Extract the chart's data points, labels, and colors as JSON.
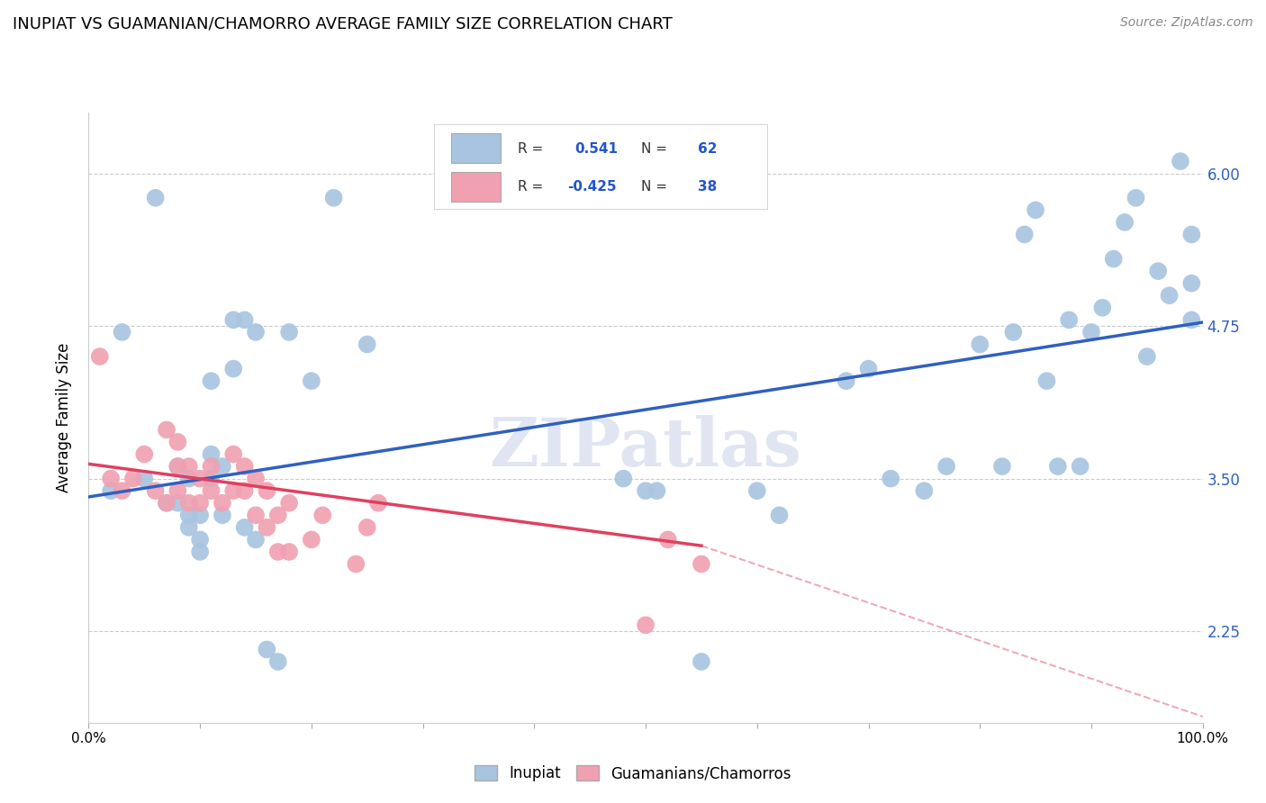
{
  "title": "INUPIAT VS GUAMANIAN/CHAMORRO AVERAGE FAMILY SIZE CORRELATION CHART",
  "source": "Source: ZipAtlas.com",
  "ylabel": "Average Family Size",
  "yticks": [
    2.25,
    3.5,
    4.75,
    6.0
  ],
  "xlim": [
    0,
    100
  ],
  "ylim": [
    1.5,
    6.5
  ],
  "blue_R": 0.541,
  "blue_N": 62,
  "pink_R": -0.425,
  "pink_N": 38,
  "blue_color": "#a8c4e0",
  "pink_color": "#f0a0b0",
  "blue_line_color": "#3060c0",
  "pink_line_color": "#e04060",
  "watermark": "ZIPatlas",
  "inupiat_x": [
    2,
    3,
    5,
    6,
    7,
    8,
    8,
    9,
    9,
    9,
    10,
    10,
    10,
    11,
    11,
    11,
    12,
    12,
    13,
    13,
    14,
    14,
    15,
    15,
    16,
    17,
    18,
    20,
    22,
    25,
    48,
    50,
    51,
    55,
    60,
    62,
    68,
    70,
    72,
    75,
    77,
    80,
    82,
    83,
    84,
    85,
    86,
    87,
    88,
    89,
    90,
    91,
    92,
    93,
    94,
    95,
    96,
    97,
    98,
    99,
    99,
    99
  ],
  "inupiat_y": [
    3.4,
    4.7,
    3.5,
    5.8,
    3.3,
    3.3,
    3.6,
    3.1,
    3.2,
    3.5,
    2.9,
    3.0,
    3.2,
    3.5,
    3.7,
    4.3,
    3.2,
    3.6,
    4.4,
    4.8,
    4.8,
    3.1,
    3.0,
    4.7,
    2.1,
    2.0,
    4.7,
    4.3,
    5.8,
    4.6,
    3.5,
    3.4,
    3.4,
    2.0,
    3.4,
    3.2,
    4.3,
    4.4,
    3.5,
    3.4,
    3.6,
    4.6,
    3.6,
    4.7,
    5.5,
    5.7,
    4.3,
    3.6,
    4.8,
    3.6,
    4.7,
    4.9,
    5.3,
    5.6,
    5.8,
    4.5,
    5.2,
    5.0,
    6.1,
    5.1,
    5.5,
    4.8
  ],
  "chamorro_x": [
    1,
    2,
    3,
    4,
    5,
    6,
    7,
    8,
    8,
    9,
    9,
    10,
    10,
    11,
    11,
    12,
    13,
    13,
    14,
    14,
    15,
    15,
    16,
    16,
    17,
    17,
    18,
    18,
    20,
    21,
    24,
    25,
    26,
    50,
    52,
    55,
    7,
    8
  ],
  "chamorro_y": [
    4.5,
    3.5,
    3.4,
    3.5,
    3.7,
    3.4,
    3.3,
    3.4,
    3.6,
    3.3,
    3.6,
    3.3,
    3.5,
    3.4,
    3.6,
    3.3,
    3.4,
    3.7,
    3.4,
    3.6,
    3.2,
    3.5,
    3.1,
    3.4,
    2.9,
    3.2,
    2.9,
    3.3,
    3.0,
    3.2,
    2.8,
    3.1,
    3.3,
    2.3,
    3.0,
    2.8,
    3.9,
    3.8
  ],
  "blue_line_x0": 0,
  "blue_line_y0": 3.35,
  "blue_line_x1": 100,
  "blue_line_y1": 4.78,
  "pink_line_x0": 0,
  "pink_line_y0": 3.62,
  "pink_line_x1": 55,
  "pink_line_y1": 2.95,
  "pink_dash_x0": 55,
  "pink_dash_y0": 2.95,
  "pink_dash_x1": 100,
  "pink_dash_y1": 1.55
}
